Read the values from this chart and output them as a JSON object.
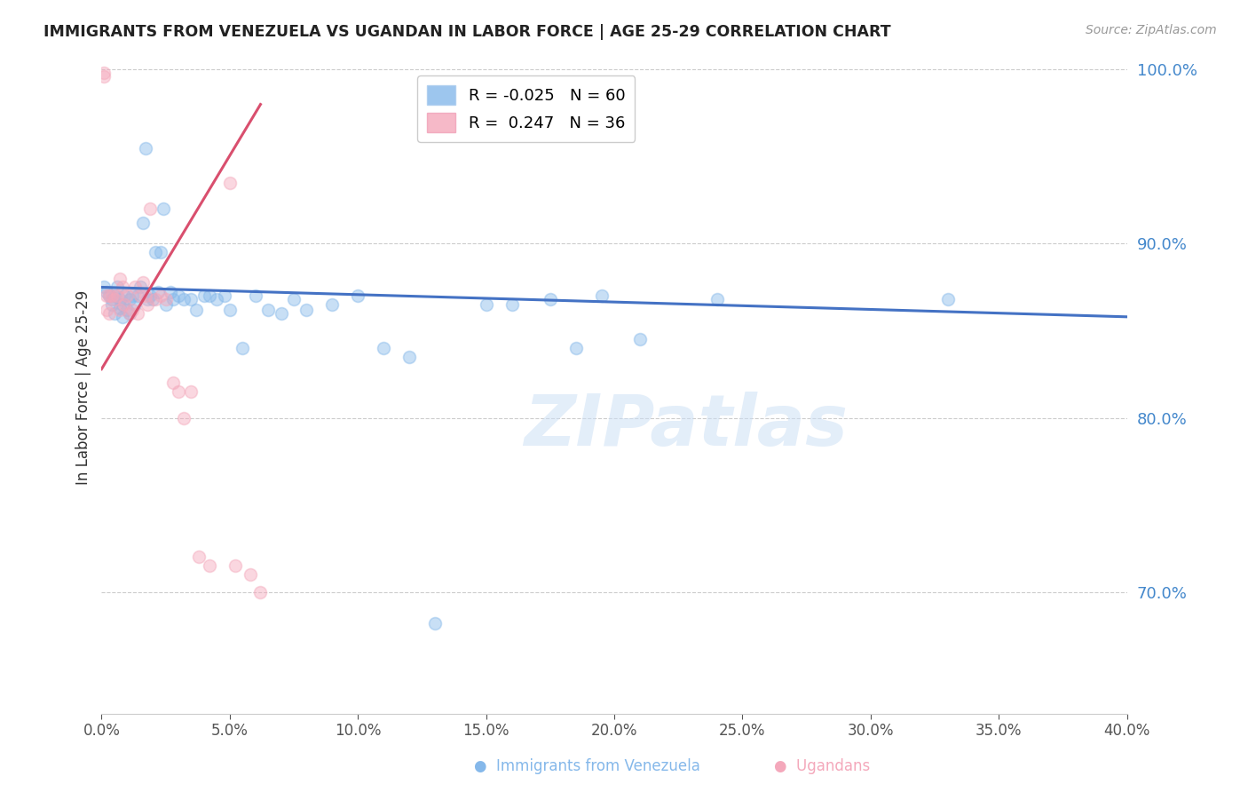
{
  "title": "IMMIGRANTS FROM VENEZUELA VS UGANDAN IN LABOR FORCE | AGE 25-29 CORRELATION CHART",
  "source": "Source: ZipAtlas.com",
  "ylabel": "In Labor Force | Age 25-29",
  "x_min": 0.0,
  "x_max": 0.4,
  "y_min": 0.63,
  "y_max": 1.005,
  "y_ticks": [
    0.7,
    0.8,
    0.9,
    1.0
  ],
  "x_ticks": [
    0.0,
    0.05,
    0.1,
    0.15,
    0.2,
    0.25,
    0.3,
    0.35,
    0.4
  ],
  "legend_R_ven": "-0.025",
  "legend_N_ven": "60",
  "legend_R_uga": "0.247",
  "legend_N_uga": "36",
  "color_venezuela": "#85b8ea",
  "color_ugandan": "#f4a8bb",
  "color_ven_line": "#4472c4",
  "color_uga_line": "#d94f6e",
  "background_color": "#ffffff",
  "grid_color": "#cccccc",
  "axis_label_color": "#4488cc",
  "watermark": "ZIPatlas",
  "marker_size": 100,
  "marker_alpha": 0.45,
  "line_width": 2.2,
  "series_venezuela_x": [
    0.001,
    0.002,
    0.003,
    0.004,
    0.004,
    0.005,
    0.005,
    0.006,
    0.007,
    0.007,
    0.008,
    0.008,
    0.009,
    0.01,
    0.011,
    0.011,
    0.012,
    0.013,
    0.014,
    0.015,
    0.016,
    0.017,
    0.018,
    0.019,
    0.02,
    0.021,
    0.022,
    0.023,
    0.024,
    0.025,
    0.027,
    0.028,
    0.03,
    0.032,
    0.035,
    0.037,
    0.04,
    0.042,
    0.045,
    0.048,
    0.05,
    0.055,
    0.06,
    0.065,
    0.07,
    0.075,
    0.08,
    0.09,
    0.1,
    0.11,
    0.12,
    0.13,
    0.15,
    0.16,
    0.175,
    0.185,
    0.195,
    0.21,
    0.24,
    0.33
  ],
  "series_venezuela_y": [
    0.875,
    0.872,
    0.87,
    0.868,
    0.865,
    0.87,
    0.86,
    0.875,
    0.868,
    0.863,
    0.865,
    0.858,
    0.87,
    0.862,
    0.868,
    0.86,
    0.87,
    0.865,
    0.87,
    0.875,
    0.912,
    0.955,
    0.868,
    0.87,
    0.868,
    0.895,
    0.872,
    0.895,
    0.92,
    0.865,
    0.872,
    0.868,
    0.87,
    0.868,
    0.868,
    0.862,
    0.87,
    0.87,
    0.868,
    0.87,
    0.862,
    0.84,
    0.87,
    0.862,
    0.86,
    0.868,
    0.862,
    0.865,
    0.87,
    0.84,
    0.835,
    0.682,
    0.865,
    0.865,
    0.868,
    0.84,
    0.87,
    0.845,
    0.868,
    0.868
  ],
  "series_ugandan_x": [
    0.001,
    0.001,
    0.002,
    0.002,
    0.003,
    0.003,
    0.004,
    0.005,
    0.006,
    0.007,
    0.007,
    0.008,
    0.009,
    0.01,
    0.011,
    0.012,
    0.013,
    0.014,
    0.015,
    0.016,
    0.017,
    0.018,
    0.019,
    0.021,
    0.023,
    0.025,
    0.028,
    0.03,
    0.032,
    0.035,
    0.038,
    0.042,
    0.05,
    0.052,
    0.058,
    0.062
  ],
  "series_ugandan_y": [
    0.998,
    0.996,
    0.87,
    0.862,
    0.87,
    0.86,
    0.87,
    0.868,
    0.87,
    0.862,
    0.88,
    0.875,
    0.865,
    0.87,
    0.86,
    0.862,
    0.875,
    0.86,
    0.87,
    0.878,
    0.87,
    0.865,
    0.92,
    0.868,
    0.87,
    0.868,
    0.82,
    0.815,
    0.8,
    0.815,
    0.72,
    0.715,
    0.935,
    0.715,
    0.71,
    0.7
  ],
  "trend_ven_x0": 0.0,
  "trend_ven_y0": 0.875,
  "trend_ven_x1": 0.4,
  "trend_ven_y1": 0.858,
  "trend_uga_x0": 0.0,
  "trend_uga_y0": 0.828,
  "trend_uga_x1": 0.062,
  "trend_uga_y1": 0.98
}
